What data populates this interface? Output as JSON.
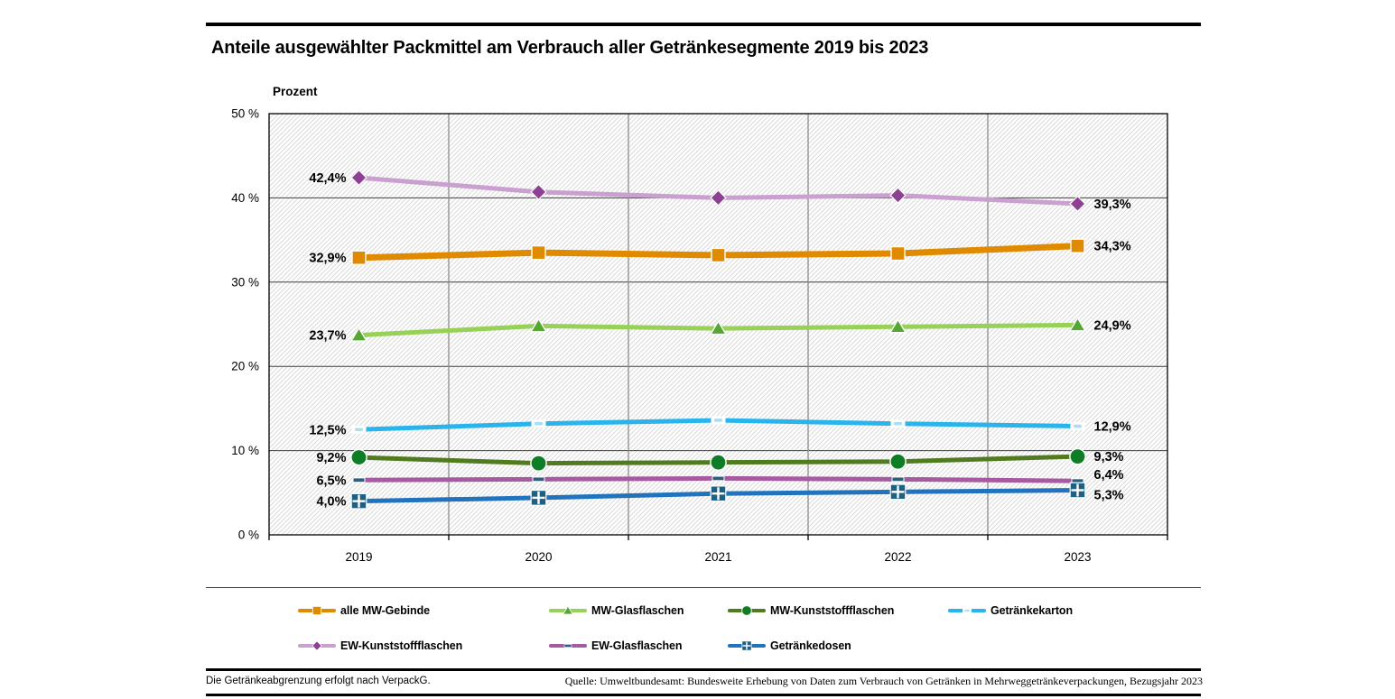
{
  "page": {
    "title": "Anteile ausgewählter Packmittel am Verbrauch aller Getränkesegmente 2019 bis 2023",
    "y_axis_title": "Prozent",
    "footer_note": "Die Getränkeabgrenzung erfolgt nach VerpackG.",
    "footer_source": "Quelle: Umweltbundesamt: Bundesweite Erhebung von Daten zum Verbrauch von Getränken in Mehrweggetränkeverpackungen, Bezugsjahr 2023"
  },
  "chart_data": {
    "type": "line",
    "title": "Anteile ausgewählter Packmittel am Verbrauch aller Getränkesegmente 2019 bis 2023",
    "ylabel": "Prozent",
    "x": [
      "2019",
      "2020",
      "2021",
      "2022",
      "2023"
    ],
    "ylim": [
      0,
      50
    ],
    "ytick_interval": 10,
    "ytick_labels": [
      "0 %",
      "10 %",
      "20 %",
      "30 %",
      "40 %",
      "50 %"
    ],
    "grid": true,
    "plot_background": "diagonal-hatch",
    "legend_position": "bottom",
    "series": [
      {
        "name": "alle MW-Gebinde",
        "values": [
          32.9,
          33.5,
          33.2,
          33.4,
          34.3
        ],
        "line_color": "#E08A00",
        "marker": "square",
        "marker_color": "#E08A00",
        "first_label": "32,9%",
        "last_label": "34,3%"
      },
      {
        "name": "MW-Glasflaschen",
        "values": [
          23.7,
          24.8,
          24.5,
          24.7,
          24.9
        ],
        "line_color": "#97D157",
        "marker": "triangle",
        "marker_color": "#55A633",
        "first_label": "23,7%",
        "last_label": "24,9%"
      },
      {
        "name": "MW-Kunststoffflaschen",
        "values": [
          9.2,
          8.5,
          8.6,
          8.7,
          9.3
        ],
        "line_color": "#507B1E",
        "marker": "circle",
        "marker_color": "#0E7D25",
        "first_label": "9,2%",
        "last_label": "9,3%"
      },
      {
        "name": "Getränkekarton",
        "values": [
          12.5,
          13.2,
          13.6,
          13.2,
          12.9
        ],
        "line_color": "#29B4EC",
        "marker": "dash-light",
        "marker_color": "#A9DEF6",
        "first_label": "12,5%",
        "last_label": "12,9%"
      },
      {
        "name": "EW-Kunststoffflaschen",
        "values": [
          42.4,
          40.7,
          40.0,
          40.3,
          39.3
        ],
        "line_color": "#C9A0CF",
        "marker": "diamond",
        "marker_color": "#8E4092",
        "first_label": "42,4%",
        "last_label": "39,3%"
      },
      {
        "name": "EW-Glasflaschen",
        "values": [
          6.5,
          6.6,
          6.7,
          6.6,
          6.4
        ],
        "line_color": "#A65AA0",
        "marker": "dash-dark",
        "marker_color": "#2C5F7E",
        "first_label": "6,5%",
        "last_label": "6,4%"
      },
      {
        "name": "Getränkedosen",
        "values": [
          4.0,
          4.4,
          4.9,
          5.1,
          5.3
        ],
        "line_color": "#2173BE",
        "marker": "plus-square",
        "marker_color": "#1E6084",
        "first_label": "4,0%",
        "last_label": "5,3%"
      }
    ],
    "legend_rows": [
      [
        "alle MW-Gebinde",
        "MW-Glasflaschen",
        "MW-Kunststoffflaschen",
        "Getränkekarton"
      ],
      [
        "EW-Kunststoffflaschen",
        "EW-Glasflaschen",
        "Getränkedosen"
      ]
    ]
  }
}
